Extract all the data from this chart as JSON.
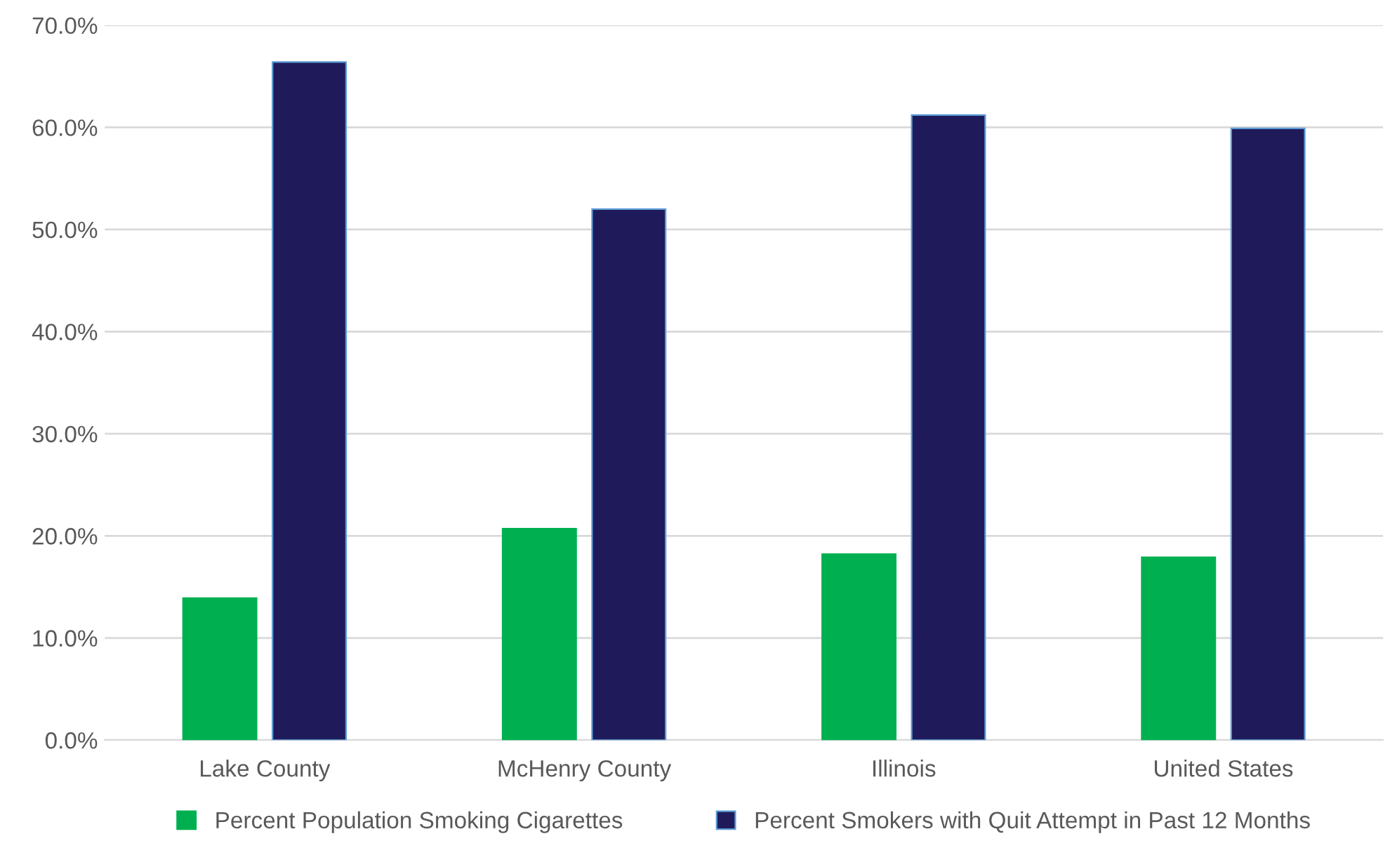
{
  "chart_data": {
    "type": "bar",
    "categories": [
      "Lake County",
      "McHenry County",
      "Illinois",
      "United States"
    ],
    "series": [
      {
        "name": "Percent Population Smoking Cigarettes",
        "color": "#00b050",
        "values": [
          13.9,
          20.7,
          18.2,
          17.9
        ]
      },
      {
        "name": "Percent Smokers with Quit Attempt in Past 12 Months",
        "color": "#1f1b5a",
        "values": [
          66.4,
          52.0,
          61.2,
          59.9
        ]
      }
    ],
    "ylim": [
      0,
      70
    ],
    "yticks": [
      {
        "value": 0,
        "label": "0.0%"
      },
      {
        "value": 10,
        "label": "10.0%"
      },
      {
        "value": 20,
        "label": "20.0%"
      },
      {
        "value": 30,
        "label": "30.0%"
      },
      {
        "value": 40,
        "label": "40.0%"
      },
      {
        "value": 50,
        "label": "50.0%"
      },
      {
        "value": 60,
        "label": "60.0%"
      },
      {
        "value": 70,
        "label": "70.0%"
      }
    ],
    "grid": "y",
    "legend": "bottom"
  }
}
